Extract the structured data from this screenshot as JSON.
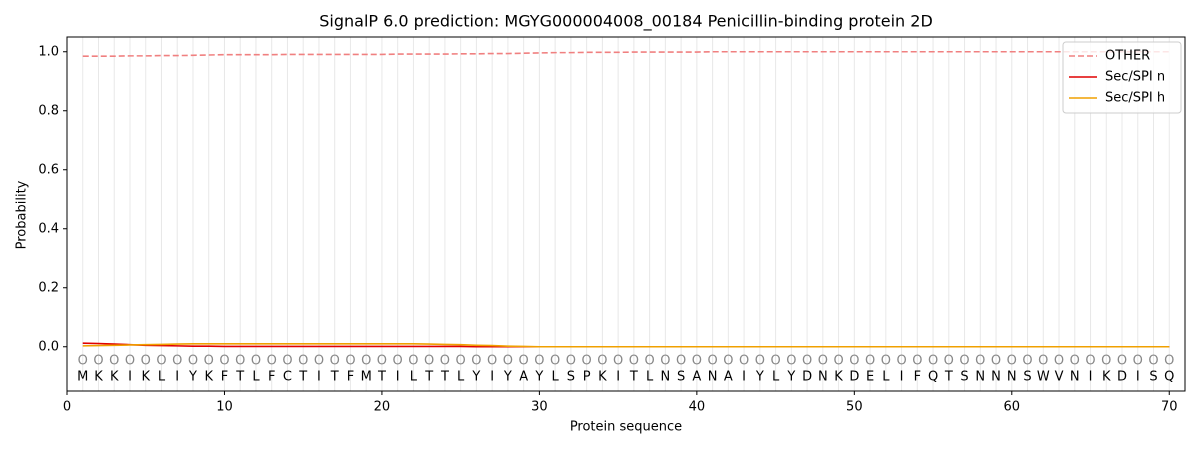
{
  "chart_data": {
    "type": "line",
    "title": "SignalP 6.0 prediction: MGYG000004008_00184 Penicillin-binding protein 2D",
    "xlabel": "Protein sequence",
    "ylabel": "Probability",
    "x": [
      1,
      2,
      3,
      4,
      5,
      6,
      7,
      8,
      9,
      10,
      11,
      12,
      13,
      14,
      15,
      16,
      17,
      18,
      19,
      20,
      21,
      22,
      23,
      24,
      25,
      26,
      27,
      28,
      29,
      30,
      31,
      32,
      33,
      34,
      35,
      36,
      37,
      38,
      39,
      40,
      41,
      42,
      43,
      44,
      45,
      46,
      47,
      48,
      49,
      50,
      51,
      52,
      53,
      54,
      55,
      56,
      57,
      58,
      59,
      60,
      61,
      62,
      63,
      64,
      65,
      66,
      67,
      68,
      69,
      70
    ],
    "residues": [
      "M",
      "K",
      "K",
      "I",
      "K",
      "L",
      "I",
      "Y",
      "K",
      "F",
      "T",
      "L",
      "F",
      "C",
      "T",
      "I",
      "T",
      "F",
      "M",
      "T",
      "I",
      "L",
      "T",
      "T",
      "L",
      "Y",
      "I",
      "Y",
      "A",
      "Y",
      "L",
      "S",
      "P",
      "K",
      "I",
      "T",
      "L",
      "N",
      "S",
      "A",
      "N",
      "A",
      "I",
      "Y",
      "L",
      "Y",
      "D",
      "N",
      "K",
      "D",
      "E",
      "L",
      "I",
      "F",
      "Q",
      "T",
      "S",
      "N",
      "N",
      "N",
      "S",
      "W",
      "V",
      "N",
      "I",
      "K",
      "D",
      "I",
      "S",
      "Q"
    ],
    "predicted_labels": [
      "O",
      "O",
      "O",
      "O",
      "O",
      "O",
      "O",
      "O",
      "O",
      "O",
      "O",
      "O",
      "O",
      "O",
      "O",
      "O",
      "O",
      "O",
      "O",
      "O",
      "O",
      "O",
      "O",
      "O",
      "O",
      "O",
      "O",
      "O",
      "O",
      "O",
      "O",
      "O",
      "O",
      "O",
      "O",
      "O",
      "O",
      "O",
      "O",
      "O",
      "O",
      "O",
      "O",
      "O",
      "O",
      "O",
      "O",
      "O",
      "O",
      "O",
      "O",
      "O",
      "O",
      "O",
      "O",
      "O",
      "O",
      "O",
      "O",
      "O",
      "O",
      "O",
      "O",
      "O",
      "O",
      "O",
      "O",
      "O",
      "O",
      "O"
    ],
    "series": [
      {
        "name": "OTHER",
        "color": "#f08080",
        "linestyle": "dashed",
        "values": [
          0.985,
          0.985,
          0.985,
          0.986,
          0.986,
          0.987,
          0.987,
          0.988,
          0.989,
          0.99,
          0.99,
          0.99,
          0.99,
          0.991,
          0.991,
          0.991,
          0.991,
          0.991,
          0.991,
          0.991,
          0.992,
          0.992,
          0.992,
          0.992,
          0.993,
          0.993,
          0.994,
          0.994,
          0.995,
          0.996,
          0.997,
          0.997,
          0.998,
          0.998,
          0.998,
          0.999,
          0.999,
          0.999,
          0.999,
          0.999,
          1,
          1,
          1,
          1,
          1,
          1,
          1,
          1,
          1,
          1,
          1,
          1,
          1,
          1,
          1,
          1,
          1,
          1,
          1,
          1,
          1,
          1,
          1,
          1,
          1,
          1,
          1,
          1,
          1,
          1
        ]
      },
      {
        "name": "Sec/SPI n",
        "color": "#e00000",
        "linestyle": "solid",
        "values": [
          0.012,
          0.011,
          0.009,
          0.007,
          0.005,
          0.004,
          0.003,
          0.002,
          0.002,
          0.001,
          0.001,
          0.001,
          0.001,
          0.001,
          0.001,
          0.001,
          0.001,
          0.001,
          0.001,
          0.001,
          0.001,
          0.001,
          0.001,
          0.001,
          0.001,
          0,
          0,
          0,
          0,
          0,
          0,
          0,
          0,
          0,
          0,
          0,
          0,
          0,
          0,
          0,
          0,
          0,
          0,
          0,
          0,
          0,
          0,
          0,
          0,
          0,
          0,
          0,
          0,
          0,
          0,
          0,
          0,
          0,
          0,
          0,
          0,
          0,
          0,
          0,
          0,
          0,
          0,
          0,
          0,
          0
        ]
      },
      {
        "name": "Sec/SPI h",
        "color": "#f0a000",
        "linestyle": "solid",
        "values": [
          0.003,
          0.004,
          0.005,
          0.006,
          0.007,
          0.008,
          0.009,
          0.01,
          0.01,
          0.01,
          0.01,
          0.01,
          0.01,
          0.01,
          0.01,
          0.01,
          0.01,
          0.01,
          0.01,
          0.01,
          0.01,
          0.01,
          0.009,
          0.008,
          0.007,
          0.005,
          0.004,
          0.002,
          0.001,
          0,
          0,
          0,
          0,
          0,
          0,
          0,
          0,
          0,
          0,
          0,
          0,
          0,
          0,
          0,
          0,
          0,
          0,
          0,
          0,
          0,
          0,
          0,
          0,
          0,
          0,
          0,
          0,
          0,
          0,
          0,
          0,
          0,
          0,
          0,
          0,
          0,
          0,
          0,
          0,
          0
        ]
      }
    ],
    "xlim": [
      0,
      71
    ],
    "xticks": [
      0,
      10,
      20,
      30,
      40,
      50,
      60,
      70
    ],
    "ylim": [
      -0.15,
      1.05
    ],
    "yticks": [
      {
        "value": 0,
        "label": "0.0"
      },
      0.2,
      0.4,
      0.6,
      0.8,
      {
        "value": 1,
        "label": "1.0"
      }
    ],
    "grid": true,
    "legend": "upper right"
  }
}
